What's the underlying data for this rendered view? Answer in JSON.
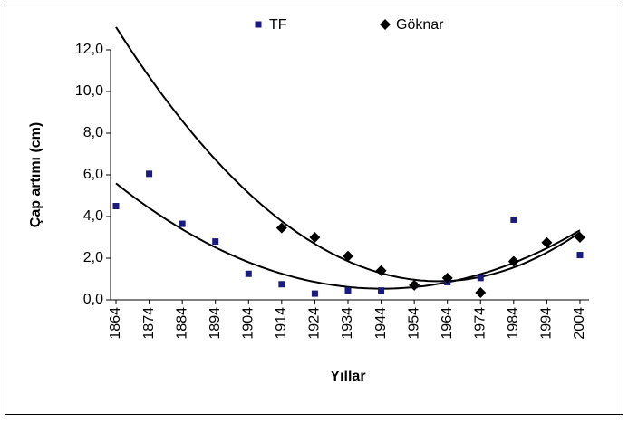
{
  "chart_data": {
    "type": "scatter",
    "xlabel": "Yıllar",
    "ylabel": "Çap artımı (cm)",
    "categories": [
      "1864",
      "1874",
      "1884",
      "1894",
      "1904",
      "1914",
      "1924",
      "1934",
      "1944",
      "1954",
      "1964",
      "1974",
      "1984",
      "1994",
      "2004"
    ],
    "series": [
      {
        "name": "TF",
        "color": "#1a1a80",
        "marker": "square",
        "values": [
          4.5,
          6.05,
          3.65,
          2.8,
          1.25,
          0.75,
          0.3,
          0.45,
          0.45,
          0.7,
          0.85,
          1.05,
          3.85,
          null,
          2.15
        ]
      },
      {
        "name": "Göknar",
        "color": "#000000",
        "marker": "diamond",
        "values": [
          null,
          null,
          null,
          null,
          null,
          3.45,
          3.0,
          2.1,
          1.4,
          0.7,
          1.05,
          0.35,
          1.85,
          2.75,
          3.0
        ]
      }
    ],
    "ylim": [
      0,
      12
    ],
    "yticks": [
      {
        "value": 0,
        "label": "0,0"
      },
      {
        "value": 2,
        "label": "2,0"
      },
      {
        "value": 4,
        "label": "4,0"
      },
      {
        "value": 6,
        "label": "6,0"
      },
      {
        "value": 8,
        "label": "8,0"
      },
      {
        "value": 10,
        "label": "10,0"
      },
      {
        "value": 12,
        "label": "12,0"
      }
    ],
    "trendline": "polynomial",
    "legend": "top"
  }
}
